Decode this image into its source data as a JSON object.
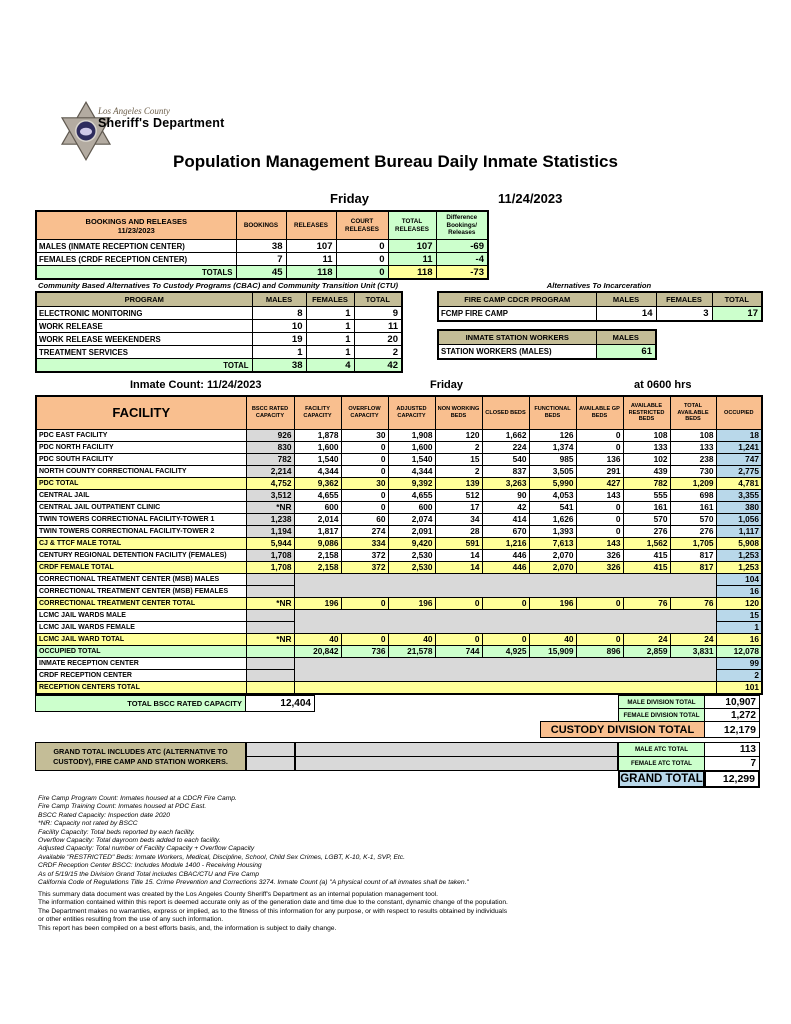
{
  "colors": {
    "orange": "#F9BF8F",
    "yellow": "#FFFF99",
    "green": "#CCFFCC",
    "blue": "#B9D8EA",
    "gray": "#D9D9D9",
    "tan": "#C4BD97"
  },
  "header": {
    "agency_line1": "Los Angeles County",
    "agency_line2": "Sheriff's Department",
    "title": "Population Management Bureau Daily Inmate Statistics",
    "day": "Friday",
    "date": "11/24/2023"
  },
  "bookings": {
    "header": {
      "title": "BOOKINGS AND RELEASES",
      "date": "11/23/2023",
      "cols_orange": [
        "BOOKINGS",
        "RELEASES",
        "COURT RELEASES"
      ],
      "cols_green": [
        "TOTAL RELEASES",
        "Difference Bookings/ Releases"
      ]
    },
    "rows": [
      {
        "label": "MALES (INMATE RECEPTION CENTER)",
        "values": [
          "38",
          "107",
          "0",
          "107",
          "-69"
        ]
      },
      {
        "label": "FEMALES (CRDF RECEPTION CENTER)",
        "values": [
          "7",
          "11",
          "0",
          "11",
          "-4"
        ]
      }
    ],
    "totals": {
      "label": "TOTALS",
      "values": [
        "45",
        "118",
        "0",
        "118",
        "-73"
      ]
    }
  },
  "cbac": {
    "title": "Community Based Alternatives To Custody Programs (CBAC) and Community Transition Unit (CTU)",
    "cols": [
      "PROGRAM",
      "MALES",
      "FEMALES",
      "TOTAL"
    ],
    "rows": [
      {
        "label": "ELECTRONIC MONITORING",
        "values": [
          "8",
          "1",
          "9"
        ]
      },
      {
        "label": "WORK RELEASE",
        "values": [
          "10",
          "1",
          "11"
        ]
      },
      {
        "label": "WORK RELEASE WEEKENDERS",
        "values": [
          "19",
          "1",
          "20"
        ]
      },
      {
        "label": "TREATMENT SERVICES",
        "values": [
          "1",
          "1",
          "2"
        ]
      }
    ],
    "total": {
      "label": "TOTAL",
      "values": [
        "38",
        "4",
        "42"
      ]
    }
  },
  "alternatives": {
    "title": "Alternatives To Incarceration",
    "fire_camp": {
      "cols": [
        "FIRE CAMP CDCR PROGRAM",
        "MALES",
        "FEMALES",
        "TOTAL"
      ],
      "row": {
        "label": "FCMP FIRE CAMP",
        "values": [
          "14",
          "3",
          "17"
        ]
      }
    },
    "station_workers": {
      "cols": [
        "INMATE STATION WORKERS",
        "MALES"
      ],
      "row": {
        "label": "STATION WORKERS (MALES)",
        "value": "61"
      }
    }
  },
  "facility": {
    "count_label": "Inmate Count:  11/24/2023",
    "day": "Friday",
    "time": "at 0600 hrs",
    "cols": [
      "FACILITY",
      "BSCC RATED CAPACITY",
      "FACILITY CAPACITY",
      "OVERFLOW CAPACITY",
      "ADJUSTED CAPACITY",
      "NON WORKING BEDS",
      "CLOSED BEDS",
      "FUNCTIONAL BEDS",
      "AVAILABLE GP BEDS",
      "AVAILABLE RESTRICTED BEDS",
      "TOTAL AVAILABLE BEDS",
      "OCCUPIED"
    ],
    "rows": [
      {
        "label": "PDC EAST FACILITY",
        "type": "data",
        "values": [
          "926",
          "1,878",
          "30",
          "1,908",
          "120",
          "1,662",
          "126",
          "0",
          "108",
          "108",
          "18"
        ]
      },
      {
        "label": "PDC NORTH FACILITY",
        "type": "data",
        "values": [
          "830",
          "1,600",
          "0",
          "1,600",
          "2",
          "224",
          "1,374",
          "0",
          "133",
          "133",
          "1,241"
        ]
      },
      {
        "label": "PDC SOUTH FACILITY",
        "type": "data",
        "values": [
          "782",
          "1,540",
          "0",
          "1,540",
          "15",
          "540",
          "985",
          "136",
          "102",
          "238",
          "747"
        ]
      },
      {
        "label": "NORTH COUNTY CORRECTIONAL FACILITY",
        "type": "data",
        "values": [
          "2,214",
          "4,344",
          "0",
          "4,344",
          "2",
          "837",
          "3,505",
          "291",
          "439",
          "730",
          "2,775"
        ]
      },
      {
        "label": "PDC TOTAL",
        "type": "total",
        "values": [
          "4,752",
          "9,362",
          "30",
          "9,392",
          "139",
          "3,263",
          "5,990",
          "427",
          "782",
          "1,209",
          "4,781"
        ]
      },
      {
        "label": "CENTRAL JAIL",
        "type": "data",
        "values": [
          "3,512",
          "4,655",
          "0",
          "4,655",
          "512",
          "90",
          "4,053",
          "143",
          "555",
          "698",
          "3,355"
        ]
      },
      {
        "label": "CENTRAL JAIL OUTPATIENT CLINIC",
        "type": "data",
        "values": [
          "*NR",
          "600",
          "0",
          "600",
          "17",
          "42",
          "541",
          "0",
          "161",
          "161",
          "380"
        ]
      },
      {
        "label": "TWIN TOWERS CORRECTIONAL FACILITY-TOWER 1",
        "type": "data",
        "values": [
          "1,238",
          "2,014",
          "60",
          "2,074",
          "34",
          "414",
          "1,626",
          "0",
          "570",
          "570",
          "1,056"
        ]
      },
      {
        "label": "TWIN TOWERS CORRECTIONAL FACILITY-TOWER 2",
        "type": "data",
        "values": [
          "1,194",
          "1,817",
          "274",
          "2,091",
          "28",
          "670",
          "1,393",
          "0",
          "276",
          "276",
          "1,117"
        ]
      },
      {
        "label": "CJ & TTCF MALE TOTAL",
        "type": "total",
        "values": [
          "5,944",
          "9,086",
          "334",
          "9,420",
          "591",
          "1,216",
          "7,613",
          "143",
          "1,562",
          "1,705",
          "5,908"
        ]
      },
      {
        "label": "CENTURY REGIONAL DETENTION FACILITY (FEMALES)",
        "type": "data",
        "values": [
          "1,708",
          "2,158",
          "372",
          "2,530",
          "14",
          "446",
          "2,070",
          "326",
          "415",
          "817",
          "1,253"
        ]
      },
      {
        "label": "CRDF FEMALE TOTAL",
        "type": "total",
        "values": [
          "1,708",
          "2,158",
          "372",
          "2,530",
          "14",
          "446",
          "2,070",
          "326",
          "415",
          "817",
          "1,253"
        ]
      },
      {
        "label": "CORRECTIONAL TREATMENT CENTER (MSB) MALES",
        "type": "gray-start",
        "occupied": "104"
      },
      {
        "label": "CORRECTIONAL TREATMENT CENTER (MSB) FEMALES",
        "type": "gray-end",
        "occupied": "16"
      },
      {
        "label": "CORRECTIONAL TREATMENT CENTER  TOTAL",
        "type": "total",
        "values": [
          "*NR",
          "196",
          "0",
          "196",
          "0",
          "0",
          "196",
          "0",
          "76",
          "76",
          "120"
        ]
      },
      {
        "label": "LCMC JAIL WARDS MALE",
        "type": "gray-start",
        "occupied": "15"
      },
      {
        "label": "LCMC JAIL WARDS FEMALE",
        "type": "gray-end",
        "occupied": "1"
      },
      {
        "label": "LCMC JAIL WARD TOTAL",
        "type": "total",
        "values": [
          "*NR",
          "40",
          "0",
          "40",
          "0",
          "0",
          "40",
          "0",
          "24",
          "24",
          "16"
        ]
      },
      {
        "label": "OCCUPIED TOTAL",
        "type": "green-total",
        "values": [
          "",
          "20,842",
          "736",
          "21,578",
          "744",
          "4,925",
          "15,909",
          "896",
          "2,859",
          "3,831",
          "12,078"
        ]
      },
      {
        "label": "INMATE RECEPTION CENTER",
        "type": "gray-start",
        "occupied": "99"
      },
      {
        "label": "CRDF RECEPTION CENTER",
        "type": "gray-end",
        "occupied": "2"
      },
      {
        "label": "RECEPTION CENTERS TOTAL",
        "type": "merged-total",
        "occupied": "101"
      }
    ],
    "bscc_total": {
      "label": "TOTAL BSCC RATED CAPACITY",
      "value": "12,404"
    }
  },
  "division": {
    "male": {
      "label": "MALE DIVISION TOTAL",
      "value": "10,907"
    },
    "female": {
      "label": "FEMALE DIVISION TOTAL",
      "value": "1,272"
    },
    "custody": {
      "label": "CUSTODY DIVISION TOTAL",
      "value": "12,179"
    }
  },
  "atc": {
    "note": "GRAND TOTAL INCLUDES ATC (ALTERNATIVE TO CUSTODY), FIRE CAMP AND STATION WORKERS.",
    "male": {
      "label": "MALE ATC TOTAL",
      "value": "113"
    },
    "female": {
      "label": "FEMALE ATC TOTAL",
      "value": "7"
    },
    "grand": {
      "label": "GRAND TOTAL",
      "value": "12,299"
    }
  },
  "footnotes": [
    "Fire Camp Program Count: Inmates housed at a CDCR Fire Camp.",
    "Fire Camp Training Count: Inmates housed at PDC East.",
    "BSCC Rated Capacity: Inspection date 2020",
    "*NR: Capacity not rated by BSCC",
    "Facility Capacity: Total beds reported by each facility.",
    "Overflow Capacity: Total dayroom beds added to each facility.",
    "Adjusted Capacity: Total number of Facility Capacity + Overflow Capacity",
    "Available \"RESTRICTED\" Beds: Inmate Workers, Medical, Discipline, School, Child Sex Crimes,  LGBT, K-10, K-1, SVP, Etc.",
    "CRDF Reception Center BSCC: Includes Module 1400 - Receiving Housing",
    "As of 5/19/15 the Division Grand Total includes CBAC/CTU and Fire Camp",
    "California Code of Regulations Title 15. Crime Prevention and Corrections 3274.  Inmate Count (a) \"A physical count of all inmates shall be taken.\""
  ],
  "disclaimer": [
    "This summary data document was created by the Los Angeles County Sheriff's Department as an internal population management tool.",
    "The information contained within this report is deemed accurate only as of the generation date and time due to the constant, dynamic change of the population.",
    "The Department makes no warranties, express or implied, as to the fitness of this information for any purpose, or with respect to results obtained by individuals",
    "or other entities resulting from the use of any such information.",
    "This report has been compiled on a best efforts basis, and, the information is subject to daily change."
  ]
}
